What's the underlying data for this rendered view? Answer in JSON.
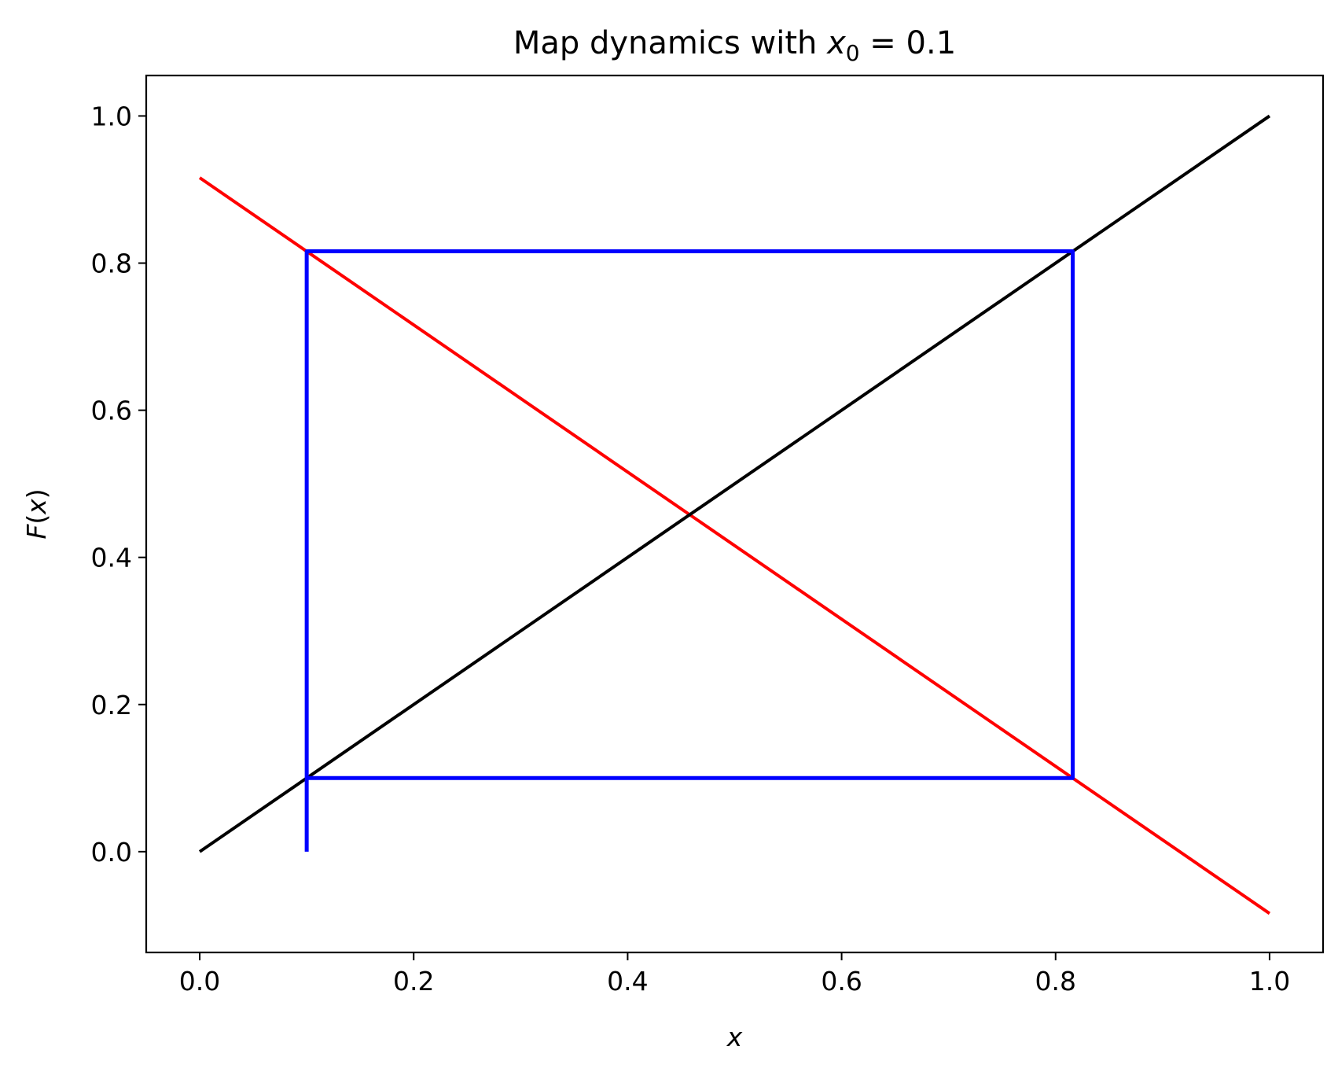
{
  "chart_data": {
    "type": "line",
    "title": "Map dynamics with ",
    "title_math": {
      "var": "x",
      "sub": "0",
      "rest": " = 0.1"
    },
    "xlabel": "x",
    "ylabel": {
      "fn": "F",
      "open": "(",
      "var": "x",
      "close": ")"
    },
    "xlim": [
      -0.05,
      1.05
    ],
    "ylim": [
      -0.137,
      1.055
    ],
    "xticks": [
      0.0,
      0.2,
      0.4,
      0.6,
      0.8,
      1.0
    ],
    "xtick_labels": [
      "0.0",
      "0.2",
      "0.4",
      "0.6",
      "0.8",
      "1.0"
    ],
    "yticks": [
      0.0,
      0.2,
      0.4,
      0.6,
      0.8,
      1.0
    ],
    "ytick_labels": [
      "0.0",
      "0.2",
      "0.4",
      "0.6",
      "0.8",
      "1.0"
    ],
    "grid": false,
    "series": [
      {
        "color": "#ff0000",
        "x": [
          0.0,
          1.0
        ],
        "y": [
          0.916,
          -0.084
        ]
      },
      {
        "color": "#000000",
        "x": [
          0.0,
          1.0
        ],
        "y": [
          0.0,
          1.0
        ]
      },
      {
        "color": "#0000ff",
        "x": [
          0.1,
          0.1,
          0.816,
          0.816,
          0.1,
          0.1
        ],
        "y": [
          0.0,
          0.816,
          0.816,
          0.1,
          0.1,
          0.816
        ]
      }
    ]
  }
}
